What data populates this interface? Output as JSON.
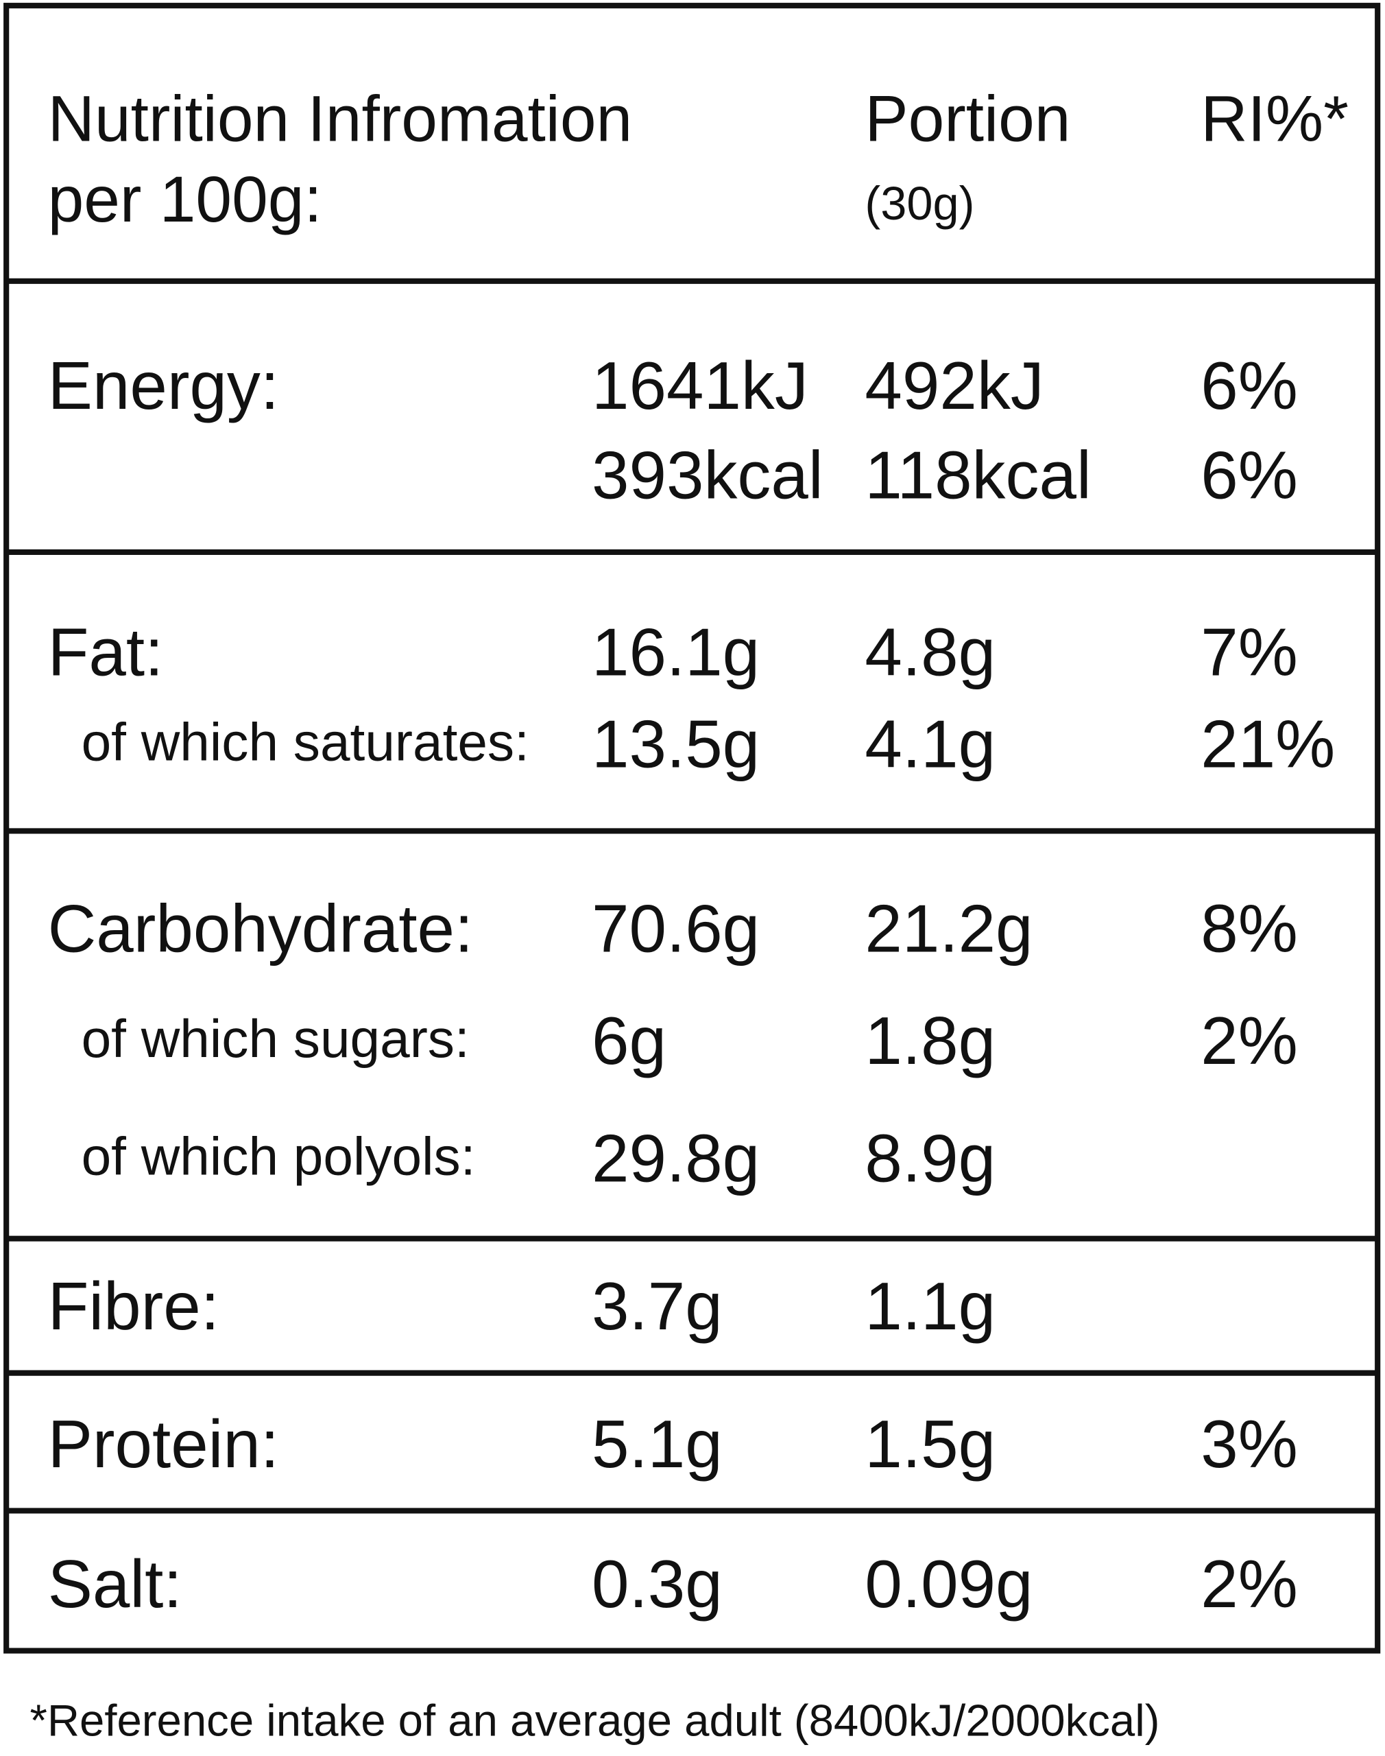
{
  "header": {
    "title": [
      "Nutrition Infromation",
      "per 100g:"
    ],
    "portion": [
      "Portion",
      "(30g)"
    ],
    "ri": "RI%*"
  },
  "groups": [
    {
      "lines": [
        [
          "Energy:",
          "1641kJ",
          "492kJ",
          "6%"
        ],
        [
          null,
          "393kcal",
          "118kcal",
          "6%"
        ]
      ]
    },
    {
      "lines": [
        [
          "Fat:",
          "16.1g",
          "4.8g",
          "7%"
        ],
        [
          "of which saturates:",
          "13.5g",
          "4.1g",
          "21%"
        ]
      ]
    },
    {
      "lines": [
        [
          "Carbohydrate:",
          "70.6g",
          "21.2g",
          "8%"
        ],
        [
          "of which sugars:",
          "6g",
          "1.8g",
          "2%"
        ],
        [
          "of which polyols:",
          "29.8g",
          "8.9g",
          null
        ]
      ]
    },
    {
      "lines": [
        [
          "Fibre:",
          "3.7g",
          "1.1g",
          null
        ]
      ]
    },
    {
      "lines": [
        [
          "Protein:",
          "5.1g",
          "1.5g",
          "3%"
        ]
      ]
    },
    {
      "lines": [
        [
          "Salt:",
          "0.3g",
          "0.09g",
          "2%"
        ]
      ]
    }
  ],
  "footnote": "*Reference intake of an average adult (8400kJ/2000kcal)"
}
